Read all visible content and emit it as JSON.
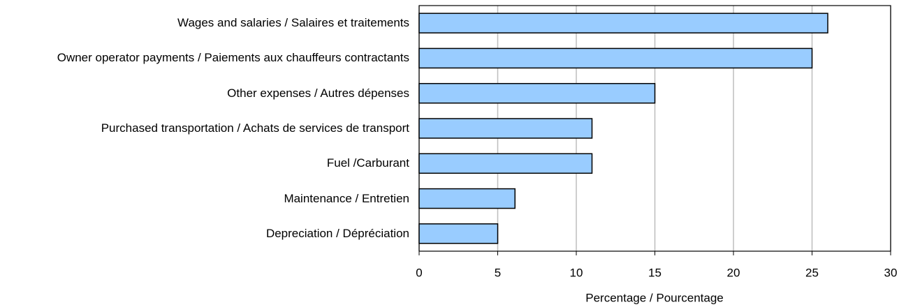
{
  "chart_data": {
    "type": "barh",
    "categories": [
      "Wages and salaries / Salaires et traitements",
      "Owner operator payments / Paiements aux chauffeurs contractants",
      "Other expenses / Autres dépenses",
      "Purchased transportation / Achats de services de transport",
      "Fuel /Carburant",
      "Maintenance / Entretien",
      "Depreciation / Dépréciation"
    ],
    "values": [
      26,
      25,
      15,
      11,
      11,
      6.1,
      5
    ],
    "color": "#99ccff",
    "xlabel": "Percentage / Pourcentage",
    "xlim": [
      0,
      30
    ],
    "xticks": [
      0,
      5,
      10,
      15,
      20,
      25,
      30
    ],
    "grid": true
  }
}
